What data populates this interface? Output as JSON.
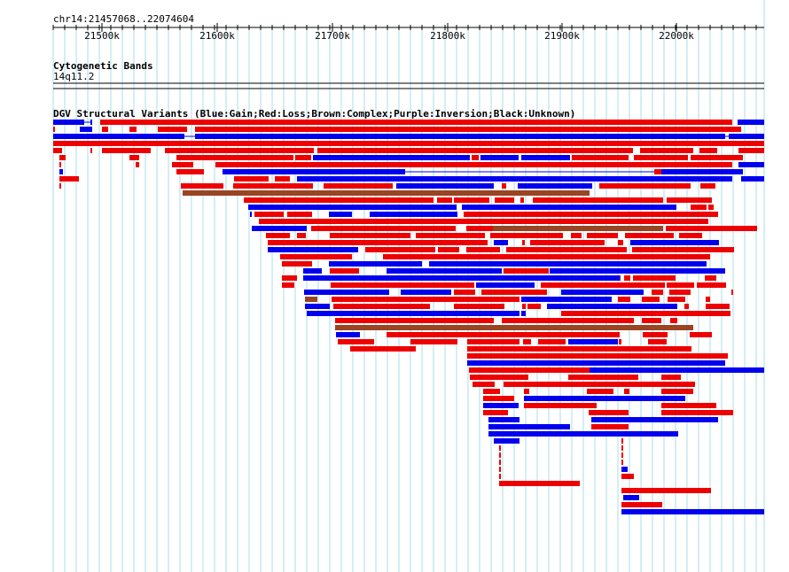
{
  "ruler": {
    "location": "chr14:21457068..22074604",
    "ticks": [
      "21500k",
      "21600k",
      "21700k",
      "21800k",
      "21900k",
      "22000k"
    ]
  },
  "cytoband_track": {
    "title": "Cytogenetic Bands",
    "band_label": "14q11.2"
  },
  "dgv_track": {
    "title": "DGV Structural Variants (Blue:Gain;Red:Loss;Brown:Complex;Purple:Inversion;Black:Unknown)"
  },
  "colors": {
    "gain": "#0000ee",
    "loss": "#ee0000",
    "complex": "#994422",
    "inversion": "#8000a0",
    "gridline": "#aaddee",
    "ruler": "#000000"
  }
}
